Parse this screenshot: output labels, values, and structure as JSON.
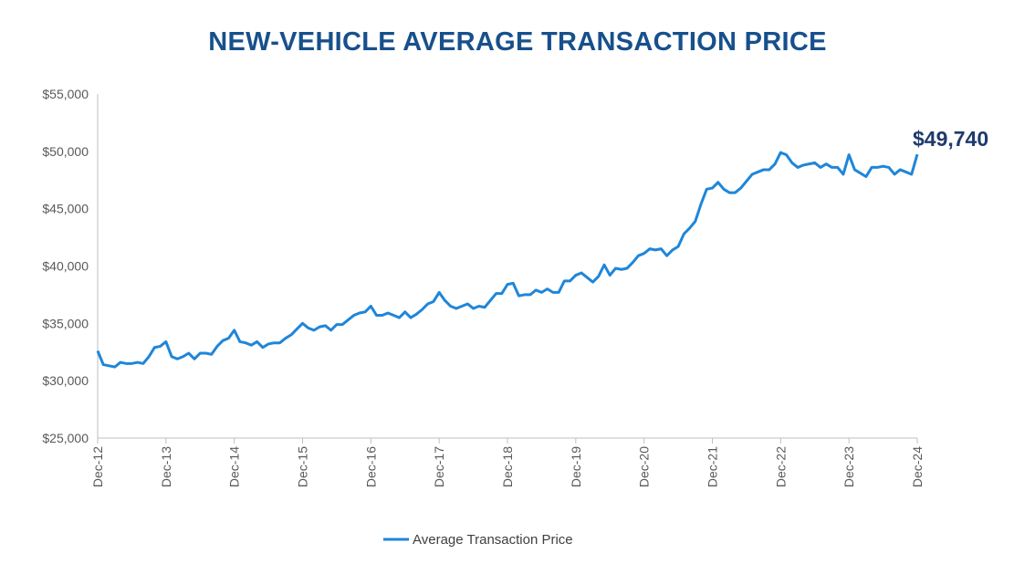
{
  "chart_data": {
    "type": "line",
    "title": "NEW-VEHICLE AVERAGE TRANSACTION PRICE",
    "xlabel": "",
    "ylabel": "",
    "ylim": [
      25000,
      55000
    ],
    "yticks": [
      25000,
      30000,
      35000,
      40000,
      45000,
      50000,
      55000
    ],
    "ytick_labels": [
      "$25,000",
      "$30,000",
      "$35,000",
      "$40,000",
      "$45,000",
      "$50,000",
      "$55,000"
    ],
    "xtick_labels": [
      "Dec-12",
      "Dec-13",
      "Dec-14",
      "Dec-15",
      "Dec-16",
      "Dec-17",
      "Dec-18",
      "Dec-19",
      "Dec-20",
      "Dec-21",
      "Dec-22",
      "Dec-23",
      "Dec-24"
    ],
    "x_frequency": "monthly, Dec-12 to Dec-24",
    "grid": false,
    "legend_position": "bottom",
    "last_value_label": "$49,740",
    "colors": {
      "line": "#1f86d9",
      "title": "#17508c",
      "label": "#1f3a6b",
      "axis": "#bfbfbf"
    },
    "series": [
      {
        "name": "Average Transaction Price",
        "values": [
          32600,
          31400,
          31300,
          31200,
          31600,
          31500,
          31500,
          31600,
          31500,
          32100,
          32900,
          33000,
          33400,
          32100,
          31900,
          32100,
          32400,
          31900,
          32400,
          32400,
          32300,
          33000,
          33500,
          33700,
          34400,
          33400,
          33300,
          33100,
          33400,
          32900,
          33200,
          33300,
          33300,
          33700,
          34000,
          34500,
          35000,
          34600,
          34400,
          34700,
          34800,
          34400,
          34900,
          34900,
          35300,
          35700,
          35900,
          36000,
          36500,
          35700,
          35700,
          35900,
          35700,
          35500,
          36000,
          35500,
          35800,
          36200,
          36700,
          36900,
          37700,
          37000,
          36500,
          36300,
          36500,
          36700,
          36300,
          36500,
          36400,
          37000,
          37600,
          37600,
          38400,
          38500,
          37400,
          37500,
          37500,
          37900,
          37700,
          38000,
          37700,
          37700,
          38700,
          38700,
          39200,
          39400,
          39000,
          38600,
          39100,
          40100,
          39200,
          39800,
          39700,
          39800,
          40300,
          40900,
          41100,
          41500,
          41400,
          41500,
          40900,
          41400,
          41700,
          42800,
          43300,
          43900,
          45400,
          46700,
          46800,
          47300,
          46700,
          46400,
          46400,
          46800,
          47400,
          48000,
          48200,
          48400,
          48400,
          48900,
          49900,
          49700,
          49000,
          48600,
          48800,
          48900,
          49000,
          48600,
          48900,
          48600,
          48600,
          48000,
          49700,
          48400,
          48100,
          47800,
          48600,
          48600,
          48700,
          48600,
          48000,
          48400,
          48200,
          48000,
          49740
        ]
      }
    ]
  }
}
